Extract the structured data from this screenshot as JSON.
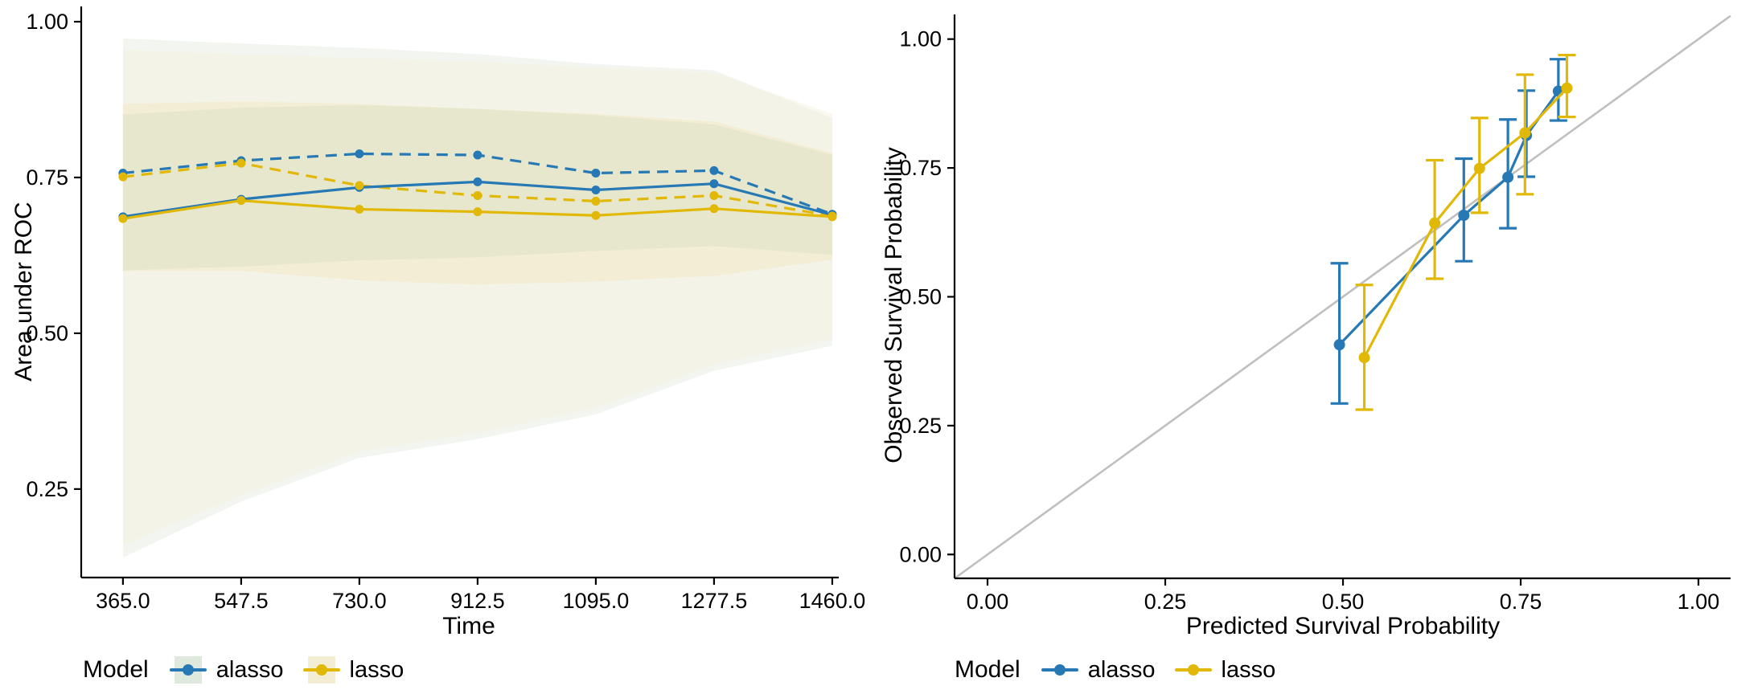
{
  "figure": {
    "background": "#ffffff"
  },
  "palette": {
    "alasso": "#2779B5",
    "lasso": "#E2B807",
    "identity_line": "#BFBFBF",
    "axis": "#000000",
    "text": "#000000"
  },
  "left_legend": {
    "title": "Model",
    "items": [
      {
        "label": "alasso",
        "color": "#2779B5",
        "swatch": "#E0E9DD"
      },
      {
        "label": "lasso",
        "color": "#E2B807",
        "swatch": "#F2EDD3"
      }
    ]
  },
  "right_legend": {
    "title": "Model",
    "items": [
      {
        "label": "alasso",
        "color": "#2779B5"
      },
      {
        "label": "lasso",
        "color": "#E2B807"
      }
    ]
  },
  "chart_data": [
    {
      "type": "line",
      "title": "",
      "xlabel": "Time",
      "ylabel": "Area under ROC",
      "x": [
        365.0,
        547.5,
        730.0,
        912.5,
        1095.0,
        1277.5,
        1460.0
      ],
      "x_tick_labels": [
        "365.0",
        "547.5",
        "730.0",
        "912.5",
        "1095.0",
        "1277.5",
        "1460.0"
      ],
      "y_ticks": [
        0.25,
        0.5,
        0.75,
        1.0
      ],
      "y_tick_labels": [
        "0.25",
        "0.50",
        "0.75",
        "1.00"
      ],
      "xlim": [
        300.6,
        1470
      ],
      "ylim": [
        0.108,
        1.0245
      ],
      "grid": false,
      "legend_position": "bottom",
      "series": [
        {
          "name": "alasso",
          "linetype": "solid",
          "color": "#2779B5",
          "values": [
            0.687,
            0.715,
            0.734,
            0.743,
            0.73,
            0.74,
            0.69
          ]
        },
        {
          "name": "alasso",
          "linetype": "dashed",
          "color": "#2779B5",
          "values": [
            0.757,
            0.777,
            0.788,
            0.786,
            0.757,
            0.761,
            0.691
          ]
        },
        {
          "name": "lasso",
          "linetype": "solid",
          "color": "#E2B807",
          "values": [
            0.684,
            0.713,
            0.699,
            0.695,
            0.689,
            0.7,
            0.687
          ]
        },
        {
          "name": "lasso",
          "linetype": "dashed",
          "color": "#E2B807",
          "values": [
            0.751,
            0.773,
            0.737,
            0.721,
            0.712,
            0.721,
            0.688
          ]
        }
      ],
      "ribbons": [
        {
          "name": "alasso-wide",
          "color": "#E7EDE3",
          "opacity": 0.55,
          "lower": [
            0.14,
            0.23,
            0.3,
            0.33,
            0.37,
            0.44,
            0.48
          ],
          "upper": [
            0.973,
            0.965,
            0.958,
            0.948,
            0.932,
            0.922,
            0.845
          ]
        },
        {
          "name": "lasso-wide",
          "color": "#F5F1E0",
          "opacity": 0.5,
          "lower": [
            0.16,
            0.24,
            0.31,
            0.34,
            0.38,
            0.45,
            0.49
          ],
          "upper": [
            0.955,
            0.948,
            0.942,
            0.936,
            0.926,
            0.918,
            0.852
          ]
        },
        {
          "name": "alasso-narrow",
          "color": "#D5DFD4",
          "opacity": 0.85,
          "lower": [
            0.601,
            0.607,
            0.617,
            0.622,
            0.632,
            0.64,
            0.626
          ],
          "upper": [
            0.851,
            0.862,
            0.866,
            0.86,
            0.85,
            0.835,
            0.786
          ]
        },
        {
          "name": "lasso-narrow",
          "color": "#F0E9C6",
          "opacity": 0.6,
          "lower": [
            0.6,
            0.6,
            0.585,
            0.578,
            0.583,
            0.592,
            0.618
          ],
          "upper": [
            0.868,
            0.872,
            0.868,
            0.86,
            0.852,
            0.84,
            0.789
          ]
        }
      ]
    },
    {
      "type": "scatter",
      "title": "",
      "xlabel": "Predicted Survival Probability",
      "ylabel": "Observed Survival Probability",
      "x_ticks": [
        0.0,
        0.25,
        0.5,
        0.75,
        1.0
      ],
      "x_tick_labels": [
        "0.00",
        "0.25",
        "0.50",
        "0.75",
        "1.00"
      ],
      "y_ticks": [
        0.0,
        0.25,
        0.5,
        0.75,
        1.0
      ],
      "y_tick_labels": [
        "0.00",
        "0.25",
        "0.50",
        "0.75",
        "1.00"
      ],
      "xlim": [
        -0.0464,
        1.0452
      ],
      "ylim": [
        -0.0463,
        1.0478
      ],
      "grid": false,
      "identity_line": true,
      "legend_position": "bottom",
      "series": [
        {
          "name": "alasso",
          "color": "#2779B5",
          "points": [
            {
              "x": 0.495,
              "y": 0.407,
              "lo": 0.293,
              "hi": 0.565
            },
            {
              "x": 0.67,
              "y": 0.658,
              "lo": 0.569,
              "hi": 0.768
            },
            {
              "x": 0.732,
              "y": 0.732,
              "lo": 0.633,
              "hi": 0.844
            },
            {
              "x": 0.758,
              "y": 0.813,
              "lo": 0.733,
              "hi": 0.9
            },
            {
              "x": 0.803,
              "y": 0.899,
              "lo": 0.842,
              "hi": 0.961
            }
          ]
        },
        {
          "name": "lasso",
          "color": "#E2B807",
          "points": [
            {
              "x": 0.53,
              "y": 0.382,
              "lo": 0.281,
              "hi": 0.523
            },
            {
              "x": 0.629,
              "y": 0.643,
              "lo": 0.535,
              "hi": 0.765
            },
            {
              "x": 0.692,
              "y": 0.749,
              "lo": 0.663,
              "hi": 0.847
            },
            {
              "x": 0.756,
              "y": 0.818,
              "lo": 0.699,
              "hi": 0.931
            },
            {
              "x": 0.815,
              "y": 0.905,
              "lo": 0.849,
              "hi": 0.969
            }
          ]
        }
      ]
    }
  ]
}
